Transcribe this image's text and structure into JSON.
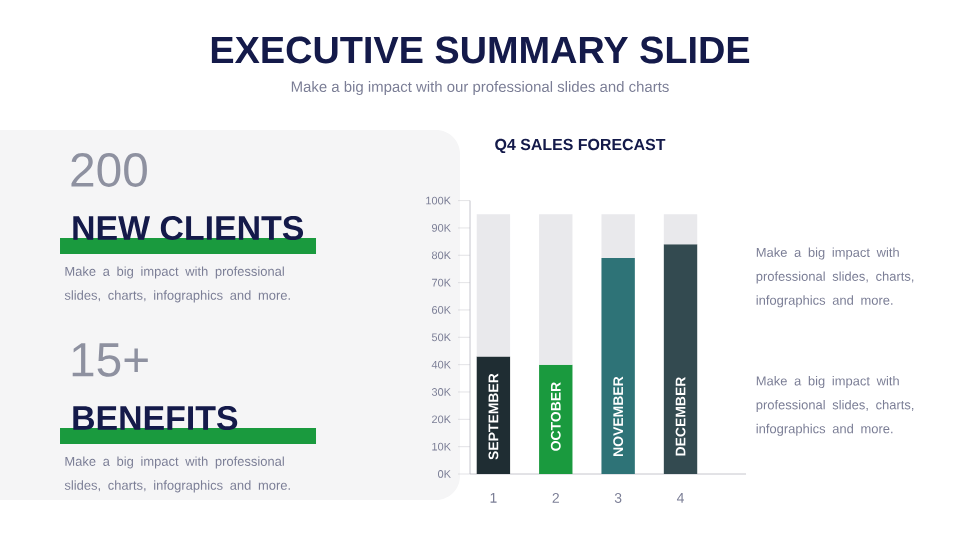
{
  "chart_data": [
    {
      "type": "other",
      "title": "EXECUTIVE SUMMARY SLIDE",
      "subtitle": "Make a big impact with our professional slides and charts",
      "annotations": [
        "200",
        "NEW CLIENTS",
        "Make a big impact with professional slides, charts, infographics and more.",
        "15+",
        "BENEFITS",
        "Make a big impact with professional slides, charts, infographics and more."
      ]
    },
    {
      "type": "bar",
      "title": "Q4 SALES FORECAST",
      "categories": [
        "1",
        "2",
        "3",
        "4"
      ],
      "stacked": true,
      "series": [
        {
          "colors": [
            "#1f2d33",
            "#1a9a3e",
            "#2e7377",
            "#334a50"
          ],
          "values": [
            43000,
            40000,
            79000,
            84000
          ]
        },
        {
          "color": "#e9e9ec",
          "values": [
            52000,
            55000,
            16000,
            11000
          ]
        }
      ],
      "ylim": [
        0,
        100000
      ],
      "yticks": [
        {
          "value": 0,
          "label": "0K"
        },
        {
          "value": 10000,
          "label": "10K"
        },
        {
          "value": 20000,
          "label": "20K"
        },
        {
          "value": 30000,
          "label": "30K"
        },
        {
          "value": 40000,
          "label": "40K"
        },
        {
          "value": 50000,
          "label": "50K"
        },
        {
          "value": 60000,
          "label": "60K"
        },
        {
          "value": 70000,
          "label": "70K"
        },
        {
          "value": 80000,
          "label": "80K"
        },
        {
          "value": 90000,
          "label": "90K"
        },
        {
          "value": 100000,
          "label": "100K"
        }
      ],
      "annotations": [
        "SEPTEMBER",
        "OCTOBER",
        "NOVEMBER",
        "DECEMBER",
        "Make a big impact with professional slides, charts, infographics and more.",
        "Make a big impact with professional slides, charts, infographics and more."
      ]
    }
  ]
}
